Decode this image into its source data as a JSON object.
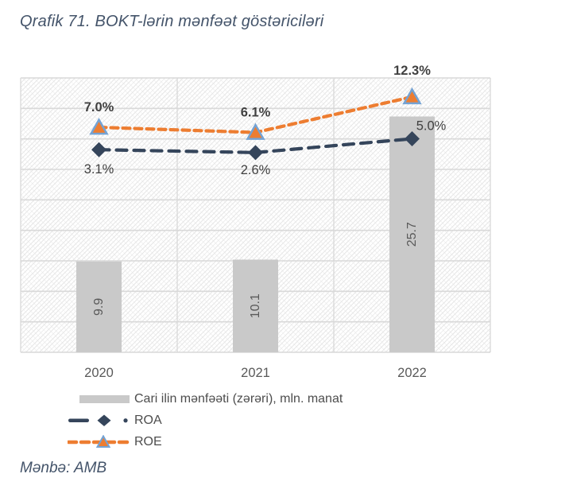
{
  "title": "Qrafik 71. BOKT-lərin mənfəət göstəriciləri",
  "source": "Mənbə: AMB",
  "colors": {
    "title_text": "#44546a",
    "bar_fill": "#c9c9c9",
    "roa_line": "#35455b",
    "roe_line": "#ed7d31",
    "roe_marker_border": "#74a3d4",
    "gridline": "#d9d9d9",
    "data_label": "#404040",
    "bar_label": "#595959",
    "axis_label": "#595959",
    "legend_text": "#4d4d4d"
  },
  "chart_data": {
    "type": "combo",
    "title": "Qrafik 71. BOKT-lərin mənfəət göstəriciləri",
    "categories": [
      "2020",
      "2021",
      "2022"
    ],
    "series": [
      {
        "name": "Cari ilin mənfəəti (zərəri), mln. manat",
        "type": "bar",
        "axis": "bar",
        "values": [
          9.9,
          10.1,
          25.7
        ],
        "labels": [
          "9.9",
          "10.1",
          "25.7"
        ],
        "color": "#c9c9c9"
      },
      {
        "name": "ROA",
        "type": "line",
        "axis": "pct",
        "values": [
          3.1,
          2.6,
          5.0
        ],
        "labels": [
          "3.1%",
          "2.6%",
          "5.0%"
        ],
        "color": "#35455b",
        "marker": "diamond",
        "label_bold": false
      },
      {
        "name": "ROE",
        "type": "line",
        "axis": "pct",
        "values": [
          7.0,
          6.1,
          12.3
        ],
        "labels": [
          "7.0%",
          "6.1%",
          "12.3%"
        ],
        "color": "#ed7d31",
        "marker": "triangle",
        "marker_border": "#74a3d4",
        "label_bold": true
      }
    ],
    "bar_axis": {
      "min": 0,
      "max": 29.9
    },
    "pct_axis": {
      "min": -32.2,
      "max": 15.6
    },
    "grid": {
      "h_intervals": 9,
      "v_category_boundaries": true
    },
    "legend_position": "bottom-left",
    "xlabel": "",
    "ylabel": ""
  }
}
